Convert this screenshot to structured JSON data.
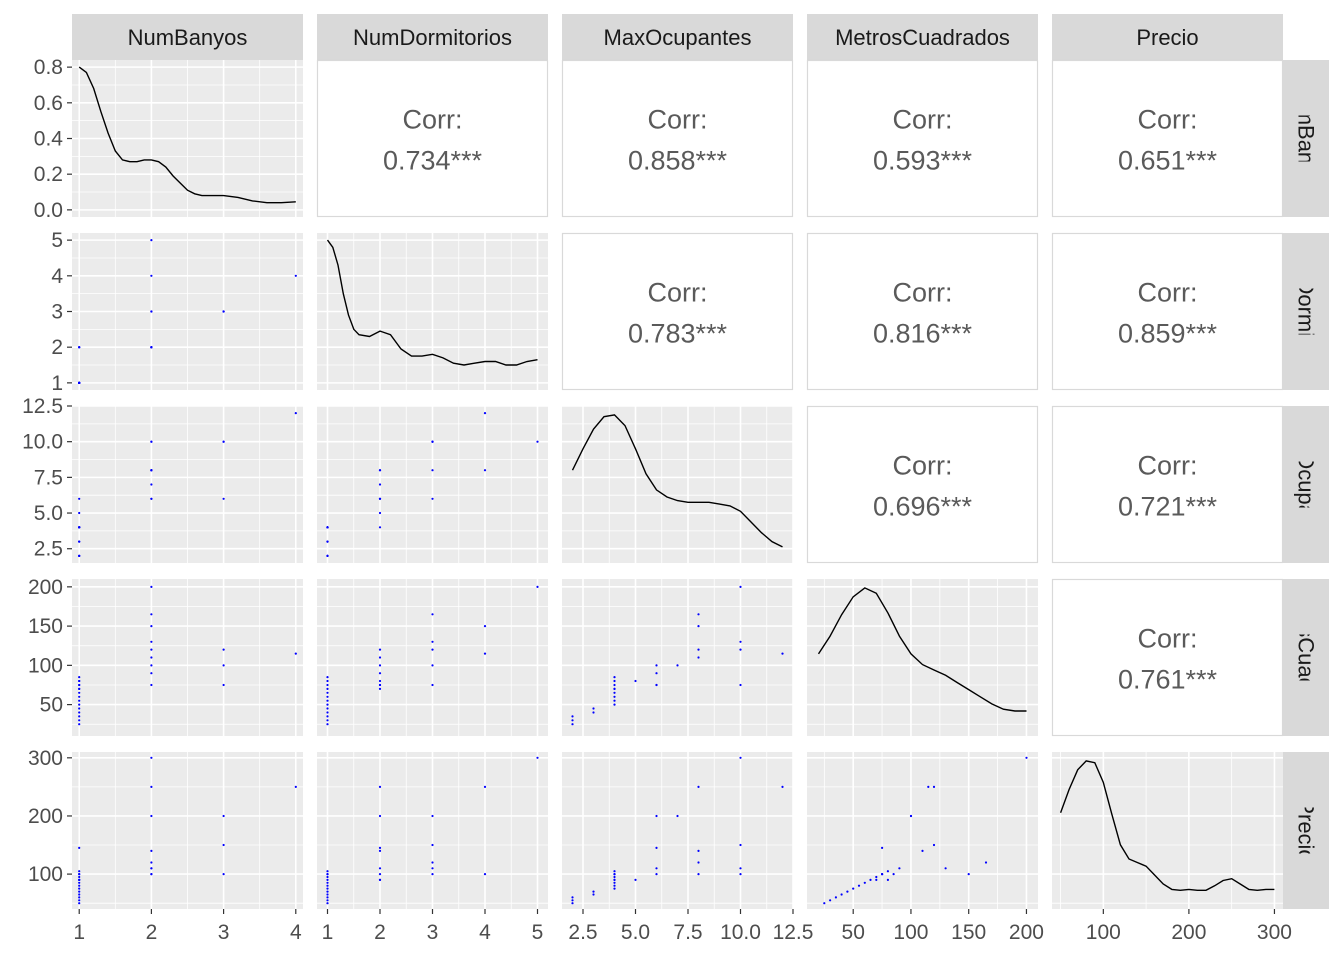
{
  "colors": {
    "panel_bg": "#EBEBEB",
    "grid": "#FFFFFF",
    "strip_bg": "#D9D9D9",
    "point": "#0000FF",
    "density_line": "#000000",
    "corr_border": "#D9D9D9"
  },
  "chart_data": {
    "type": "scatter",
    "layout": "pairs-matrix",
    "variables": [
      "NumBanyos",
      "NumDormitorios",
      "MaxOcupantes",
      "MetrosCuadrados",
      "Precio"
    ],
    "axes": [
      {
        "name": "NumBanyos",
        "range": [
          0.9,
          4.1
        ],
        "ticks": [
          1,
          2,
          3,
          4
        ],
        "tick_labels": [
          "1",
          "2",
          "3",
          "4"
        ]
      },
      {
        "name": "NumDormitorios",
        "range": [
          0.8,
          5.2
        ],
        "ticks": [
          1,
          2,
          3,
          4,
          5
        ],
        "tick_labels": [
          "1",
          "2",
          "3",
          "4",
          "5"
        ]
      },
      {
        "name": "MaxOcupantes",
        "range": [
          1.5,
          12.5
        ],
        "ticks": [
          2.5,
          5,
          7.5,
          10,
          12.5
        ],
        "tick_labels": [
          "2.5",
          "5.0",
          "7.5",
          "10.0",
          "12.5"
        ]
      },
      {
        "name": "MetrosCuadrados",
        "range": [
          10,
          210
        ],
        "ticks": [
          50,
          100,
          150,
          200
        ],
        "tick_labels": [
          "50",
          "100",
          "150",
          "200"
        ]
      },
      {
        "name": "Precio",
        "range": [
          40,
          310
        ],
        "ticks": [
          100,
          200,
          300
        ],
        "tick_labels": [
          "100",
          "200",
          "300"
        ]
      }
    ],
    "density_y_axis": {
      "range": [
        -0.04,
        0.84
      ],
      "ticks": [
        0,
        0.2,
        0.4,
        0.6,
        0.8
      ],
      "tick_labels": [
        "0.0",
        "0.2",
        "0.4",
        "0.6",
        "0.8"
      ]
    },
    "correlations": [
      {
        "row": 0,
        "col": 1,
        "label": "Corr:",
        "value": "0.734***"
      },
      {
        "row": 0,
        "col": 2,
        "label": "Corr:",
        "value": "0.858***"
      },
      {
        "row": 0,
        "col": 3,
        "label": "Corr:",
        "value": "0.593***"
      },
      {
        "row": 0,
        "col": 4,
        "label": "Corr:",
        "value": "0.651***"
      },
      {
        "row": 1,
        "col": 2,
        "label": "Corr:",
        "value": "0.783***"
      },
      {
        "row": 1,
        "col": 3,
        "label": "Corr:",
        "value": "0.816***"
      },
      {
        "row": 1,
        "col": 4,
        "label": "Corr:",
        "value": "0.859***"
      },
      {
        "row": 2,
        "col": 3,
        "label": "Corr:",
        "value": "0.696***"
      },
      {
        "row": 2,
        "col": 4,
        "label": "Corr:",
        "value": "0.721***"
      },
      {
        "row": 3,
        "col": 4,
        "label": "Corr:",
        "value": "0.761***"
      }
    ],
    "densities": [
      {
        "var": "NumBanyos",
        "x": [
          1,
          1.1,
          1.2,
          1.3,
          1.4,
          1.5,
          1.6,
          1.7,
          1.8,
          1.9,
          2,
          2.1,
          2.2,
          2.3,
          2.4,
          2.5,
          2.6,
          2.7,
          2.8,
          2.9,
          3,
          3.2,
          3.4,
          3.6,
          3.8,
          4
        ],
        "y": [
          0.8,
          0.77,
          0.68,
          0.55,
          0.43,
          0.33,
          0.28,
          0.27,
          0.27,
          0.28,
          0.28,
          0.27,
          0.24,
          0.19,
          0.15,
          0.11,
          0.09,
          0.08,
          0.08,
          0.08,
          0.08,
          0.07,
          0.05,
          0.04,
          0.04,
          0.045
        ]
      },
      {
        "var": "NumDormitorios",
        "x": [
          1,
          1.1,
          1.2,
          1.3,
          1.4,
          1.5,
          1.6,
          1.8,
          2,
          2.2,
          2.4,
          2.6,
          2.8,
          3,
          3.2,
          3.4,
          3.6,
          3.8,
          4,
          4.2,
          4.4,
          4.6,
          4.8,
          5
        ],
        "y": [
          0.8,
          0.76,
          0.66,
          0.5,
          0.38,
          0.3,
          0.27,
          0.26,
          0.29,
          0.27,
          0.19,
          0.15,
          0.15,
          0.16,
          0.14,
          0.11,
          0.1,
          0.11,
          0.12,
          0.12,
          0.1,
          0.1,
          0.12,
          0.13
        ]
      },
      {
        "var": "MaxOcupantes",
        "x": [
          2,
          2.5,
          3,
          3.5,
          4,
          4.5,
          5,
          5.5,
          6,
          6.5,
          7,
          7.5,
          8,
          8.5,
          9,
          9.5,
          10,
          10.5,
          11,
          11.5,
          12
        ],
        "y": [
          0.48,
          0.6,
          0.71,
          0.78,
          0.79,
          0.73,
          0.6,
          0.46,
          0.37,
          0.33,
          0.31,
          0.3,
          0.3,
          0.3,
          0.29,
          0.28,
          0.25,
          0.19,
          0.13,
          0.08,
          0.05
        ]
      },
      {
        "var": "MetrosCuadrados",
        "x": [
          20,
          30,
          40,
          50,
          60,
          70,
          80,
          90,
          100,
          110,
          120,
          130,
          140,
          150,
          160,
          170,
          180,
          190,
          200
        ],
        "y": [
          0.42,
          0.52,
          0.64,
          0.74,
          0.79,
          0.76,
          0.65,
          0.52,
          0.42,
          0.36,
          0.33,
          0.3,
          0.26,
          0.22,
          0.18,
          0.14,
          0.11,
          0.1,
          0.1
        ]
      },
      {
        "var": "Precio",
        "x": [
          50,
          60,
          70,
          80,
          90,
          100,
          110,
          120,
          130,
          140,
          150,
          160,
          170,
          180,
          190,
          200,
          210,
          220,
          230,
          240,
          250,
          260,
          270,
          280,
          290,
          300
        ],
        "y": [
          0.5,
          0.63,
          0.74,
          0.79,
          0.78,
          0.67,
          0.49,
          0.32,
          0.24,
          0.22,
          0.2,
          0.15,
          0.1,
          0.07,
          0.065,
          0.07,
          0.065,
          0.065,
          0.09,
          0.12,
          0.13,
          0.1,
          0.07,
          0.065,
          0.07,
          0.07
        ]
      }
    ],
    "observations": [
      [
        1,
        1,
        2,
        25,
        50
      ],
      [
        1,
        1,
        2,
        30,
        55
      ],
      [
        1,
        1,
        2,
        35,
        60
      ],
      [
        1,
        1,
        3,
        40,
        65
      ],
      [
        1,
        1,
        3,
        45,
        70
      ],
      [
        1,
        1,
        4,
        50,
        75
      ],
      [
        1,
        1,
        4,
        55,
        80
      ],
      [
        1,
        1,
        4,
        60,
        85
      ],
      [
        1,
        1,
        4,
        65,
        90
      ],
      [
        1,
        1,
        4,
        70,
        95
      ],
      [
        1,
        1,
        4,
        75,
        100
      ],
      [
        1,
        1,
        4,
        80,
        105
      ],
      [
        1,
        1,
        4,
        85,
        100
      ],
      [
        1,
        2,
        4,
        70,
        90
      ],
      [
        1,
        2,
        6,
        75,
        145
      ],
      [
        1,
        2,
        5,
        80,
        90
      ],
      [
        2,
        2,
        6,
        75,
        100
      ],
      [
        2,
        2,
        6,
        90,
        110
      ],
      [
        2,
        2,
        7,
        100,
        200
      ],
      [
        2,
        2,
        8,
        110,
        140
      ],
      [
        2,
        2,
        8,
        120,
        250
      ],
      [
        2,
        3,
        10,
        130,
        110
      ],
      [
        2,
        4,
        8,
        150,
        100
      ],
      [
        2,
        3,
        8,
        165,
        120
      ],
      [
        2,
        5,
        10,
        200,
        300
      ],
      [
        3,
        3,
        10,
        75,
        100
      ],
      [
        3,
        3,
        10,
        120,
        150
      ],
      [
        3,
        3,
        6,
        100,
        200
      ],
      [
        4,
        4,
        12,
        115,
        250
      ]
    ]
  }
}
